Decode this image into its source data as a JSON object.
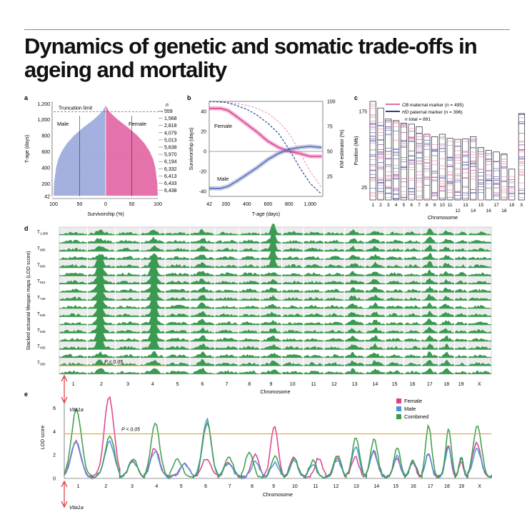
{
  "title": "Dynamics of genetic and somatic trade-offs in ageing and mortality",
  "colors": {
    "female": "#d9418f",
    "male": "#5a6db5",
    "combined": "#3a9d4a",
    "threshold": "#e2a13a",
    "cb": "#e26ba8",
    "hd": "#2a3a9a",
    "green": "#2f8f46"
  },
  "chart_data": [
    {
      "id": "a",
      "panel_label": "a",
      "type": "bar",
      "xlabel": "Survivorship (%)",
      "ylabel": "T-age (days)",
      "xticks": [
        "100",
        "50",
        "0",
        "50",
        "100"
      ],
      "yticks": [
        "1,200",
        "1,000",
        "800",
        "600",
        "400",
        "200",
        "42"
      ],
      "ytick_values": [
        1200,
        1000,
        800,
        600,
        400,
        200,
        42
      ],
      "ylim": [
        42,
        1230
      ],
      "annotation": "Truncation limit",
      "truncation_limit": 1100,
      "left_label": "Male",
      "right_label": "Female",
      "n_header": "n",
      "n_values": [
        "559",
        "1,568",
        "2,818",
        "4,079",
        "5,013",
        "5,638",
        "5,970",
        "6,194",
        "6,332",
        "6,413",
        "6,433",
        "6,438"
      ],
      "n_age": [
        1100,
        1000,
        900,
        800,
        700,
        600,
        500,
        400,
        300,
        200,
        100,
        42
      ],
      "survival_age": [
        42,
        200,
        300,
        400,
        500,
        600,
        700,
        800,
        900,
        1000,
        1100,
        1150,
        1180
      ],
      "survival_pct": [
        100,
        99,
        97,
        95,
        91,
        84,
        74,
        60,
        42,
        22,
        6,
        2,
        0
      ]
    },
    {
      "id": "b",
      "panel_label": "b",
      "type": "line",
      "xlabel": "T-age (days)",
      "ylabel": "Survivorship (days)",
      "y2label": "KM estimator (%)",
      "xticks": [
        "42",
        "200",
        "400",
        "600",
        "800",
        "1,000"
      ],
      "xtick_values": [
        42,
        200,
        400,
        600,
        800,
        1000
      ],
      "yticks": [
        "40",
        "20",
        "0",
        "-20",
        "-40"
      ],
      "ytick_values": [
        40,
        20,
        0,
        -20,
        -40
      ],
      "y2ticks": [
        "100",
        "75",
        "50",
        "25"
      ],
      "y2tick_values": [
        100,
        75,
        50,
        25
      ],
      "xlim": [
        42,
        1120
      ],
      "ylim": [
        -45,
        50
      ],
      "y2lim": [
        5,
        100
      ],
      "series": [
        {
          "name": "Female",
          "x": [
            42,
            150,
            220,
            300,
            400,
            500,
            600,
            700,
            800,
            900,
            1000,
            1100
          ],
          "y": [
            43,
            43,
            41,
            35,
            27,
            19,
            10,
            4,
            0,
            -2,
            -5,
            -5
          ]
        },
        {
          "name": "Male",
          "x": [
            42,
            150,
            220,
            300,
            400,
            500,
            600,
            700,
            800,
            900,
            1000,
            1100
          ],
          "y": [
            -37,
            -37,
            -35,
            -30,
            -23,
            -16,
            -8,
            -2,
            2,
            4,
            5,
            4
          ]
        },
        {
          "name": "KM-female",
          "x": [
            42,
            200,
            300,
            400,
            500,
            600,
            700,
            800,
            900,
            1000,
            1100
          ],
          "y2": [
            100,
            99,
            98,
            96,
            93,
            88,
            80,
            68,
            50,
            30,
            15
          ]
        },
        {
          "name": "KM-male",
          "x": [
            42,
            200,
            300,
            400,
            500,
            600,
            700,
            800,
            900,
            1000,
            1100
          ],
          "y2": [
            100,
            99,
            96,
            92,
            86,
            78,
            68,
            52,
            34,
            18,
            8
          ]
        }
      ]
    },
    {
      "id": "c",
      "panel_label": "c",
      "type": "bar",
      "xlabel": "Chromosome",
      "ylabel": "Position (Mb)",
      "yticks": [
        "175",
        "25"
      ],
      "ytick_values": [
        175,
        25
      ],
      "legend": [
        {
          "label_italic": "CB",
          "label": "maternal marker (n = 495)"
        },
        {
          "label_italic": "HD",
          "label": "paternal marker (n = 396)"
        },
        {
          "label_italic": "n",
          "label": "total = 891"
        }
      ],
      "categories": [
        "1",
        "2",
        "3",
        "4",
        "5",
        "6",
        "7",
        "8",
        "9",
        "10",
        "11",
        "12",
        "13",
        "14",
        "15",
        "16",
        "17",
        "18",
        "19",
        "X"
      ],
      "values": [
        195,
        182,
        160,
        157,
        152,
        150,
        145,
        130,
        125,
        130,
        122,
        120,
        121,
        125,
        104,
        98,
        95,
        91,
        61,
        171
      ]
    },
    {
      "id": "d",
      "panel_label": "d",
      "type": "area",
      "xlabel": "Chromosome",
      "ylabel": "Stacked actuarial lifespan maps (LOD score)",
      "rows": [
        "T1,085",
        "T985",
        "T905",
        "T815",
        "T725",
        "T635",
        "T545",
        "T455",
        "T365"
      ],
      "row_labels": [
        {
          "base": "T",
          "sub": "1,085"
        },
        {
          "base": "T",
          "sub": "985"
        },
        {
          "base": "T",
          "sub": "905"
        },
        {
          "base": "T",
          "sub": "815"
        },
        {
          "base": "T",
          "sub": "725"
        },
        {
          "base": "T",
          "sub": "635"
        },
        {
          "base": "T",
          "sub": "545"
        },
        {
          "base": "T",
          "sub": "455"
        },
        {
          "base": "T",
          "sub": "365"
        }
      ],
      "categories": [
        "1",
        "2",
        "3",
        "4",
        "5",
        "6",
        "7",
        "8",
        "9",
        "10",
        "11",
        "12",
        "13",
        "14",
        "15",
        "16",
        "17",
        "18",
        "19",
        "X"
      ],
      "annotation": "P < 0.05"
    },
    {
      "id": "e",
      "panel_label": "e",
      "type": "line",
      "xlabel": "Chromosome",
      "ylabel": "LOD score",
      "yticks": [
        "6",
        "4",
        "2",
        "0"
      ],
      "ytick_values": [
        6,
        4,
        2,
        0
      ],
      "ylim": [
        0,
        7
      ],
      "threshold": 3.8,
      "annotation": "P < 0.05",
      "locus_label": "Vita1a",
      "locus_label_bottom": "Vita1a",
      "categories": [
        "1",
        "2",
        "3",
        "4",
        "5",
        "6",
        "7",
        "8",
        "9",
        "10",
        "11",
        "12",
        "13",
        "14",
        "15",
        "16",
        "17",
        "18",
        "19",
        "X"
      ],
      "series": [
        {
          "name": "Female",
          "peaks": [
            3.0,
            6.8,
            1.4,
            2.5,
            1.2,
            1.6,
            1.3,
            1.9,
            4.4,
            1.8,
            1.6,
            1.6,
            1.7,
            2.2,
            1.7,
            1.3,
            2.0,
            2.7,
            1.3,
            2.9
          ]
        },
        {
          "name": "Male",
          "peaks": [
            3.0,
            3.0,
            1.4,
            2.2,
            1.1,
            4.9,
            1.2,
            1.4,
            1.2,
            1.5,
            1.0,
            1.5,
            2.6,
            2.2,
            1.8,
            1.3,
            2.0,
            2.6,
            1.6,
            2.4
          ]
        },
        {
          "name": "Combined",
          "peaks": [
            5.8,
            3.4,
            1.5,
            4.6,
            1.5,
            4.6,
            1.8,
            2.1,
            1.8,
            1.5,
            1.4,
            1.8,
            3.4,
            3.2,
            2.5,
            1.4,
            4.4,
            4.0,
            1.6,
            4.3
          ]
        }
      ]
    }
  ]
}
